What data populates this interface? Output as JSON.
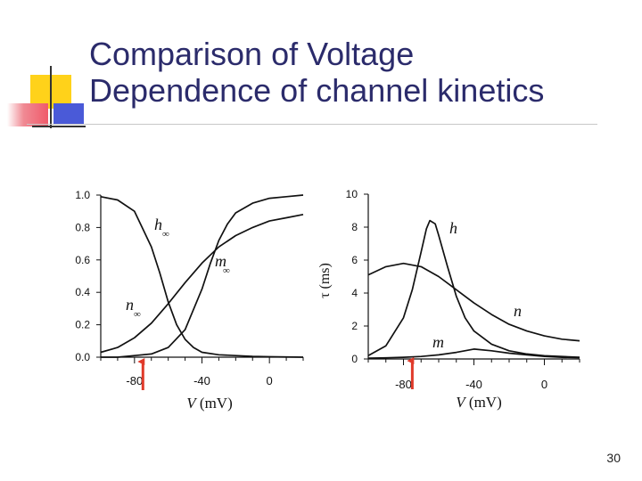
{
  "slide": {
    "title_line1": "Comparison of Voltage",
    "title_line2": "Dependence of channel kinetics",
    "page_number": "30",
    "colors": {
      "title": "#2b2b6b",
      "deco_yellow": "#ffd21a",
      "deco_red": "#f05a6a",
      "deco_blue": "#4a5ad8",
      "arrow": "#e03a2a"
    }
  },
  "chart_data": [
    {
      "type": "line",
      "xlabel": "V (mV)",
      "ylabel": "",
      "xlim": [
        -100,
        20
      ],
      "ylim": [
        0,
        1.0
      ],
      "xticks": [
        "-80",
        "-40",
        "0"
      ],
      "yticks": [
        "0.0",
        "0.2",
        "0.4",
        "0.6",
        "0.8",
        "1.0"
      ],
      "grid": false,
      "series": [
        {
          "name": "h∞",
          "label_main": "h",
          "label_sub": "∞",
          "x": [
            -100,
            -90,
            -80,
            -70,
            -65,
            -60,
            -55,
            -50,
            -45,
            -40,
            -30,
            -20,
            -10,
            0,
            20
          ],
          "y": [
            0.99,
            0.97,
            0.9,
            0.68,
            0.52,
            0.34,
            0.2,
            0.11,
            0.06,
            0.03,
            0.015,
            0.01,
            0.005,
            0.003,
            0.0
          ]
        },
        {
          "name": "m∞",
          "label_main": "m",
          "label_sub": "∞",
          "x": [
            -100,
            -90,
            -80,
            -70,
            -60,
            -50,
            -40,
            -35,
            -30,
            -25,
            -20,
            -10,
            0,
            10,
            20
          ],
          "y": [
            0.0,
            0.0,
            0.01,
            0.02,
            0.06,
            0.17,
            0.42,
            0.58,
            0.72,
            0.82,
            0.89,
            0.95,
            0.98,
            0.99,
            1.0
          ]
        },
        {
          "name": "n∞",
          "label_main": "n",
          "label_sub": "∞",
          "x": [
            -100,
            -90,
            -80,
            -70,
            -60,
            -50,
            -40,
            -30,
            -20,
            -10,
            0,
            10,
            20
          ],
          "y": [
            0.03,
            0.06,
            0.12,
            0.21,
            0.33,
            0.46,
            0.58,
            0.68,
            0.75,
            0.8,
            0.84,
            0.86,
            0.88
          ]
        }
      ],
      "annotations": [
        {
          "type": "arrow",
          "x": -75,
          "color": "#e03a2a"
        }
      ]
    },
    {
      "type": "line",
      "xlabel": "V (mV)",
      "ylabel": "τ (ms)",
      "xlim": [
        -100,
        20
      ],
      "ylim": [
        0,
        10
      ],
      "xticks": [
        "-80",
        "-40",
        "0"
      ],
      "yticks": [
        "0",
        "2",
        "4",
        "6",
        "8",
        "10"
      ],
      "grid": false,
      "series": [
        {
          "name": "h",
          "label_main": "h",
          "label_sub": "",
          "x": [
            -100,
            -90,
            -80,
            -75,
            -70,
            -67,
            -65,
            -62,
            -60,
            -55,
            -50,
            -45,
            -40,
            -30,
            -20,
            -10,
            0,
            20
          ],
          "y": [
            0.2,
            0.8,
            2.5,
            4.2,
            6.5,
            7.9,
            8.4,
            8.2,
            7.5,
            5.6,
            3.8,
            2.5,
            1.7,
            0.9,
            0.5,
            0.3,
            0.2,
            0.1
          ]
        },
        {
          "name": "n",
          "label_main": "n",
          "label_sub": "",
          "x": [
            -100,
            -90,
            -80,
            -70,
            -60,
            -50,
            -40,
            -30,
            -20,
            -10,
            0,
            10,
            20
          ],
          "y": [
            5.1,
            5.6,
            5.8,
            5.6,
            5.0,
            4.2,
            3.4,
            2.7,
            2.1,
            1.7,
            1.4,
            1.2,
            1.1
          ]
        },
        {
          "name": "m",
          "label_main": "m",
          "label_sub": "",
          "x": [
            -100,
            -90,
            -80,
            -70,
            -60,
            -50,
            -40,
            -30,
            -20,
            -10,
            0,
            10,
            20
          ],
          "y": [
            0.05,
            0.07,
            0.1,
            0.15,
            0.25,
            0.4,
            0.6,
            0.5,
            0.35,
            0.25,
            0.15,
            0.1,
            0.08
          ]
        }
      ],
      "annotations": [
        {
          "type": "arrow",
          "x": -75,
          "color": "#e03a2a"
        }
      ]
    }
  ]
}
